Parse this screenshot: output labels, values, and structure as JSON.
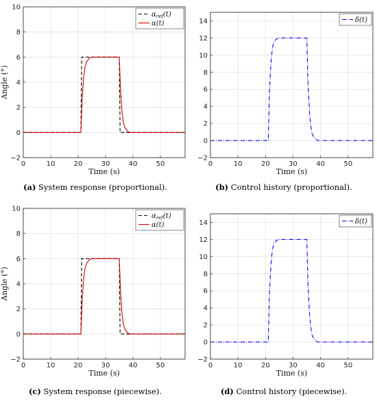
{
  "chart_data": [
    {
      "type": "line",
      "panel": "a",
      "caption_letter": "(a)",
      "caption_text": " System response (proportional).",
      "xlabel": "Time (s)",
      "ylabel": "Angle (°)",
      "xlim": [
        0,
        59
      ],
      "ylim": [
        -2,
        10
      ],
      "xticks": [
        0,
        10,
        20,
        30,
        40,
        50
      ],
      "yticks": [
        -2,
        0,
        2,
        4,
        6,
        8,
        10
      ],
      "grid": true,
      "legend": "top-right",
      "series": [
        {
          "name": "αref(t)",
          "legend_main": "α",
          "legend_sub": "ref",
          "legend_tail": "(t)",
          "color": "#000000",
          "dash": "5,3",
          "x": [
            0,
            21,
            21.3,
            35,
            35.3,
            59
          ],
          "y": [
            0,
            0,
            6,
            6,
            0,
            0
          ]
        },
        {
          "name": "α(t)",
          "legend_main": "α",
          "legend_sub": "",
          "legend_tail": "(t)",
          "color": "#cc0000",
          "dash": "",
          "x": [
            0,
            21,
            21.5,
            22,
            22.5,
            23,
            24,
            25,
            35,
            35.5,
            36,
            36.5,
            37,
            38,
            39,
            59
          ],
          "y": [
            0,
            0,
            2.8,
            4.4,
            5.2,
            5.6,
            5.9,
            6,
            6,
            3.2,
            1.6,
            0.8,
            0.4,
            0.1,
            0,
            0
          ]
        }
      ]
    },
    {
      "type": "line",
      "panel": "b",
      "caption_letter": "(b)",
      "caption_text": " Control history (proportional).",
      "xlabel": "Time (s)",
      "ylabel": "",
      "xlim": [
        0,
        59
      ],
      "ylim": [
        -2,
        15
      ],
      "xticks": [
        0,
        10,
        20,
        30,
        40,
        50
      ],
      "yticks": [
        -2,
        0,
        2,
        4,
        6,
        8,
        10,
        12,
        14
      ],
      "grid": true,
      "legend": "top-right",
      "series": [
        {
          "name": "δ(t)",
          "legend_main": "δ",
          "legend_sub": "",
          "legend_tail": "(t)",
          "color": "#0000ee",
          "dash": "6,2,1,2",
          "x": [
            0,
            21,
            21.4,
            22,
            22.5,
            23,
            24,
            25,
            35,
            35.4,
            36,
            36.5,
            37,
            38,
            39,
            59
          ],
          "y": [
            0,
            0,
            5.5,
            9.2,
            10.8,
            11.5,
            11.9,
            12,
            12,
            7,
            3.2,
            1.6,
            0.7,
            0.2,
            0,
            0
          ]
        }
      ]
    },
    {
      "type": "line",
      "panel": "c",
      "caption_letter": "(c)",
      "caption_text": " System response (piecewise).",
      "xlabel": "Time (s)",
      "ylabel": "Angle (°)",
      "xlim": [
        0,
        59
      ],
      "ylim": [
        -2,
        10
      ],
      "xticks": [
        0,
        10,
        20,
        30,
        40,
        50
      ],
      "yticks": [
        -2,
        0,
        2,
        4,
        6,
        8,
        10
      ],
      "grid": true,
      "legend": "top-right",
      "series": [
        {
          "name": "αref(t)",
          "legend_main": "α",
          "legend_sub": "ref",
          "legend_tail": "(t)",
          "color": "#000000",
          "dash": "5,3",
          "x": [
            0,
            21,
            21.3,
            35,
            35.3,
            59
          ],
          "y": [
            0,
            0,
            6,
            6,
            0,
            0
          ]
        },
        {
          "name": "α(t)",
          "legend_main": "α",
          "legend_sub": "",
          "legend_tail": "(t)",
          "color": "#cc0000",
          "dash": "",
          "x": [
            0,
            21,
            21.5,
            22,
            22.5,
            23,
            24,
            25,
            35,
            35.5,
            36,
            36.5,
            37,
            38,
            39,
            59
          ],
          "y": [
            0,
            0,
            2.8,
            4.4,
            5.2,
            5.6,
            5.9,
            6,
            6,
            3.2,
            1.6,
            0.8,
            0.4,
            0.1,
            0,
            0
          ]
        }
      ]
    },
    {
      "type": "line",
      "panel": "d",
      "caption_letter": "(d)",
      "caption_text": " Control history (piecewise).",
      "xlabel": "Time (s)",
      "ylabel": "",
      "xlim": [
        0,
        59
      ],
      "ylim": [
        -2,
        15
      ],
      "xticks": [
        0,
        10,
        20,
        30,
        40,
        50
      ],
      "yticks": [
        -2,
        0,
        2,
        4,
        6,
        8,
        10,
        12,
        14
      ],
      "grid": true,
      "legend": "top-right",
      "series": [
        {
          "name": "δ(t)",
          "legend_main": "δ",
          "legend_sub": "",
          "legend_tail": "(t)",
          "color": "#0000ee",
          "dash": "6,2,1,2",
          "x": [
            0,
            21,
            21.4,
            22,
            22.5,
            23,
            24,
            25,
            35,
            35.4,
            36,
            36.5,
            37,
            38,
            39,
            59
          ],
          "y": [
            0,
            0,
            5.5,
            9.2,
            10.8,
            11.5,
            11.9,
            12,
            12,
            7,
            3.2,
            1.6,
            0.7,
            0.2,
            0,
            0
          ]
        }
      ]
    }
  ]
}
